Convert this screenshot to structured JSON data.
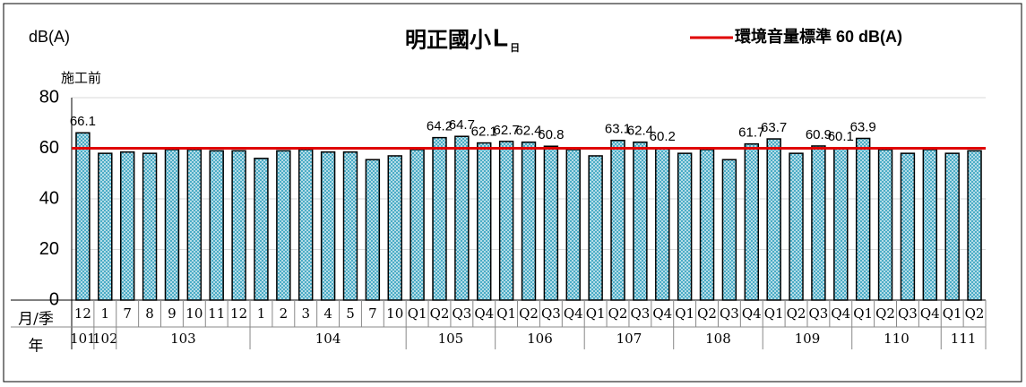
{
  "chart_data": {
    "type": "bar",
    "title": "明正國小",
    "title_symbol": "L",
    "title_subscript": "日",
    "y_label": "dB(A)",
    "annotation": "施工前",
    "row_labels": [
      "月/季",
      "年"
    ],
    "color": "#4bacc6",
    "ylim": [
      0,
      80
    ],
    "yticks": [
      0,
      20,
      40,
      60,
      80
    ],
    "grid": true,
    "reference": {
      "name": "環境音量標準 60 dB(A)",
      "value": 60,
      "color": "#e00000"
    },
    "legend": "top-right",
    "groups": [
      {
        "name": "101",
        "categories": [
          "12"
        ],
        "values": [
          66.1
        ],
        "value_labels": [
          "66.1"
        ]
      },
      {
        "name": "102",
        "categories": [
          "1"
        ],
        "values": [
          58
        ],
        "value_labels": [
          null
        ]
      },
      {
        "name": "103",
        "categories": [
          "7",
          "8",
          "9",
          "10",
          "11",
          "12"
        ],
        "values": [
          58.5,
          58,
          59.5,
          59.5,
          59,
          59
        ],
        "value_labels": [
          null,
          null,
          null,
          null,
          null,
          null
        ]
      },
      {
        "name": "104",
        "categories": [
          "1",
          "2",
          "3",
          "4",
          "5",
          "7",
          "10"
        ],
        "values": [
          56,
          59,
          59.5,
          58.5,
          58.5,
          55.5,
          57
        ],
        "value_labels": [
          null,
          null,
          null,
          null,
          null,
          null,
          null
        ]
      },
      {
        "name": "105",
        "categories": [
          "Q1",
          "Q2",
          "Q3",
          "Q4"
        ],
        "values": [
          59.5,
          64.2,
          64.7,
          62.1
        ],
        "value_labels": [
          null,
          "64.2",
          "64.7",
          "62.1"
        ]
      },
      {
        "name": "106",
        "categories": [
          "Q1",
          "Q2",
          "Q3",
          "Q4"
        ],
        "values": [
          62.7,
          62.4,
          60.8,
          59.5
        ],
        "value_labels": [
          "62.7",
          "62.4",
          "60.8",
          null
        ]
      },
      {
        "name": "107",
        "categories": [
          "Q1",
          "Q2",
          "Q3",
          "Q4"
        ],
        "values": [
          57,
          63.1,
          62.4,
          60.2
        ],
        "value_labels": [
          null,
          "63.1",
          "62.4",
          "60.2"
        ]
      },
      {
        "name": "108",
        "categories": [
          "Q1",
          "Q2",
          "Q3",
          "Q4"
        ],
        "values": [
          58,
          59.5,
          55.5,
          61.7
        ],
        "value_labels": [
          null,
          null,
          null,
          "61.7"
        ]
      },
      {
        "name": "109",
        "categories": [
          "Q1",
          "Q2",
          "Q3",
          "Q4"
        ],
        "values": [
          63.7,
          58,
          60.9,
          60.1
        ],
        "value_labels": [
          "63.7",
          null,
          "60.9",
          "60.1"
        ]
      },
      {
        "name": "110",
        "categories": [
          "Q1",
          "Q2",
          "Q3",
          "Q4"
        ],
        "values": [
          63.9,
          59.5,
          58,
          59.5
        ],
        "value_labels": [
          "63.9",
          null,
          null,
          null
        ]
      },
      {
        "name": "111",
        "categories": [
          "Q1",
          "Q2"
        ],
        "values": [
          58,
          59
        ],
        "value_labels": [
          null,
          null
        ]
      }
    ]
  }
}
